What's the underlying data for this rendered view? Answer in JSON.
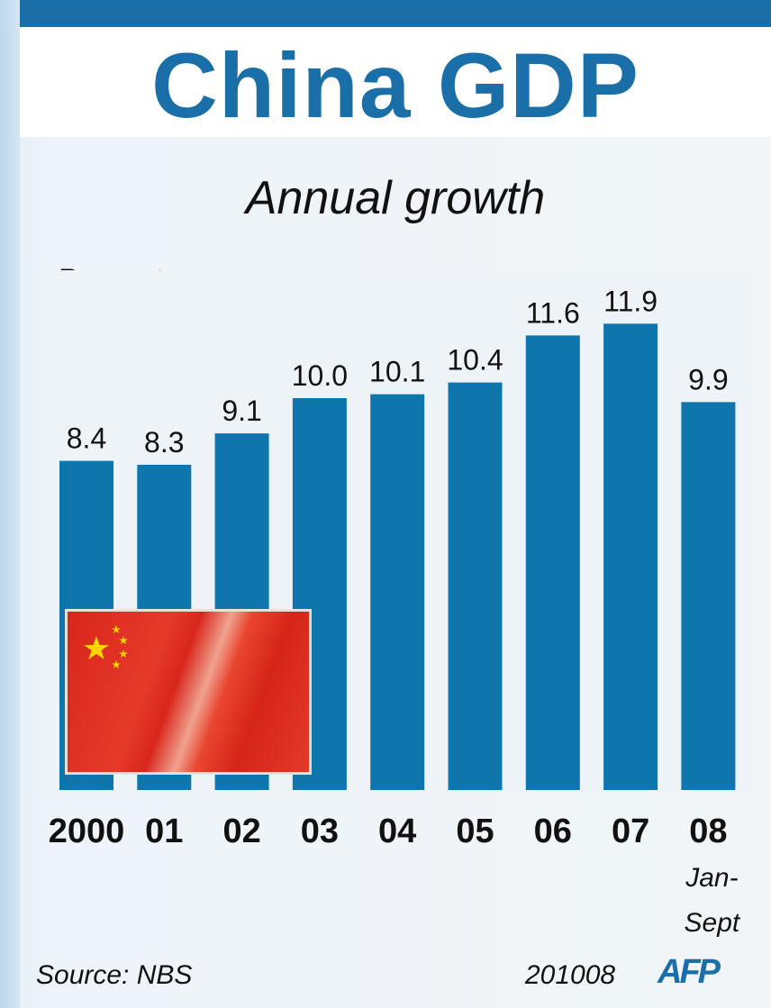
{
  "title": "China GDP",
  "subtitle": "Annual growth",
  "ylabel": "Percent",
  "footer": {
    "source": "Source: NBS",
    "code": "201008",
    "agency": "AFP"
  },
  "flag_icon": "china-flag-icon",
  "colors": {
    "bar": "#0e76ad",
    "accent": "#1a6fa9"
  },
  "chart_data": {
    "type": "bar",
    "title": "China GDP",
    "subtitle": "Annual growth",
    "ylabel": "Percent",
    "xlabel": "",
    "categories": [
      "2000",
      "01",
      "02",
      "03",
      "04",
      "05",
      "06",
      "07",
      "08"
    ],
    "category_notes": [
      "",
      "",
      "",
      "",
      "",
      "",
      "",
      "",
      "Jan- Sept"
    ],
    "values": [
      8.4,
      8.3,
      9.1,
      10.0,
      10.1,
      10.4,
      11.6,
      11.9,
      9.9
    ],
    "value_labels": [
      "8.4",
      "8.3",
      "9.1",
      "10.0",
      "10.1",
      "10.4",
      "11.6",
      "11.9",
      "9.9"
    ],
    "ylim": [
      0,
      11.9
    ],
    "grid": false,
    "legend": "none"
  }
}
